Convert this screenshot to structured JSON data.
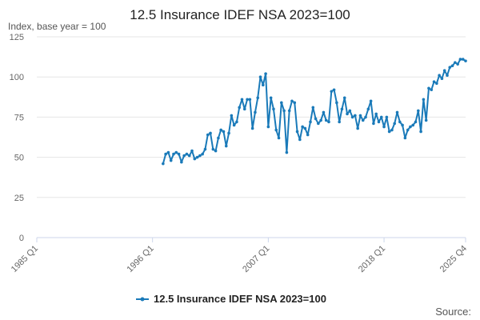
{
  "chart_data": {
    "type": "line",
    "title": "12.5 Insurance IDEF NSA 2023=100",
    "ylabel": "Index, base year = 100",
    "xlabel": "",
    "ylim": [
      0,
      125
    ],
    "yticks": [
      0,
      25,
      50,
      75,
      100,
      125
    ],
    "xlim": [
      "1985 Q1",
      "2025 Q4"
    ],
    "xticks": [
      "1985 Q1",
      "1996 Q1",
      "2007 Q1",
      "2018 Q1",
      "2025 Q4"
    ],
    "grid": true,
    "legend": "bottom-center",
    "color": "#1a7ab9",
    "source_label": "Source:",
    "series": [
      {
        "name": "12.5 Insurance IDEF NSA 2023=100",
        "x": [
          "1997 Q1",
          "1997 Q2",
          "1997 Q3",
          "1997 Q4",
          "1998 Q1",
          "1998 Q2",
          "1998 Q3",
          "1998 Q4",
          "1999 Q1",
          "1999 Q2",
          "1999 Q3",
          "1999 Q4",
          "2000 Q1",
          "2000 Q2",
          "2000 Q3",
          "2000 Q4",
          "2001 Q1",
          "2001 Q2",
          "2001 Q3",
          "2001 Q4",
          "2002 Q1",
          "2002 Q2",
          "2002 Q3",
          "2002 Q4",
          "2003 Q1",
          "2003 Q2",
          "2003 Q3",
          "2003 Q4",
          "2004 Q1",
          "2004 Q2",
          "2004 Q3",
          "2004 Q4",
          "2005 Q1",
          "2005 Q2",
          "2005 Q3",
          "2005 Q4",
          "2006 Q1",
          "2006 Q2",
          "2006 Q3",
          "2006 Q4",
          "2007 Q1",
          "2007 Q2",
          "2007 Q3",
          "2007 Q4",
          "2008 Q1",
          "2008 Q2",
          "2008 Q3",
          "2008 Q4",
          "2009 Q1",
          "2009 Q2",
          "2009 Q3",
          "2009 Q4",
          "2010 Q1",
          "2010 Q2",
          "2010 Q3",
          "2010 Q4",
          "2011 Q1",
          "2011 Q2",
          "2011 Q3",
          "2011 Q4",
          "2012 Q1",
          "2012 Q2",
          "2012 Q3",
          "2012 Q4",
          "2013 Q1",
          "2013 Q2",
          "2013 Q3",
          "2013 Q4",
          "2014 Q1",
          "2014 Q2",
          "2014 Q3",
          "2014 Q4",
          "2015 Q1",
          "2015 Q2",
          "2015 Q3",
          "2015 Q4",
          "2016 Q1",
          "2016 Q2",
          "2016 Q3",
          "2016 Q4",
          "2017 Q1",
          "2017 Q2",
          "2017 Q3",
          "2017 Q4",
          "2018 Q1",
          "2018 Q2",
          "2018 Q3",
          "2018 Q4",
          "2019 Q1",
          "2019 Q2",
          "2019 Q3",
          "2019 Q4",
          "2020 Q1",
          "2020 Q2",
          "2020 Q3",
          "2020 Q4",
          "2021 Q1",
          "2021 Q2",
          "2021 Q3",
          "2021 Q4",
          "2022 Q1",
          "2022 Q2",
          "2022 Q3",
          "2022 Q4",
          "2023 Q1",
          "2023 Q2",
          "2023 Q3",
          "2023 Q4",
          "2024 Q1",
          "2024 Q2",
          "2024 Q3",
          "2024 Q4",
          "2025 Q1",
          "2025 Q2",
          "2025 Q3",
          "2025 Q4"
        ],
        "values": [
          46,
          52,
          53,
          48,
          52,
          53,
          52,
          47,
          51,
          52,
          51,
          54,
          49,
          50,
          51,
          52,
          55,
          64,
          65,
          55,
          54,
          62,
          67,
          66,
          57,
          65,
          76,
          70,
          72,
          81,
          86,
          80,
          86,
          86,
          68,
          78,
          87,
          100,
          95,
          102,
          69,
          87,
          80,
          67,
          62,
          84,
          79,
          53,
          79,
          85,
          84,
          66,
          61,
          69,
          68,
          64,
          72,
          81,
          74,
          71,
          73,
          78,
          73,
          72,
          91,
          92,
          84,
          72,
          80,
          87,
          77,
          79,
          75,
          76,
          68,
          76,
          73,
          75,
          80,
          85,
          71,
          77,
          72,
          75,
          69,
          75,
          66,
          67,
          71,
          78,
          72,
          70,
          62,
          67,
          69,
          70,
          72,
          79,
          66,
          86,
          73,
          93,
          92,
          97,
          96,
          101,
          99,
          104,
          101,
          106,
          107,
          109,
          108,
          111,
          111,
          110
        ]
      }
    ]
  }
}
